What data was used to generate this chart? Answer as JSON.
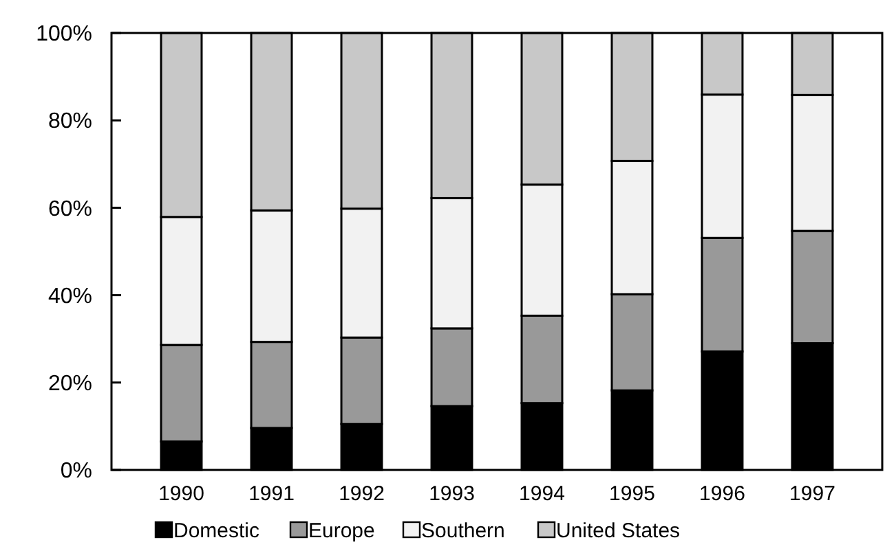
{
  "chart_data": {
    "type": "bar",
    "stacked": true,
    "categories": [
      "1990",
      "1991",
      "1992",
      "1993",
      "1994",
      "1995",
      "1996",
      "1997"
    ],
    "series": [
      {
        "name": "Domestic",
        "color": "#000000",
        "values": [
          6.5,
          9.6,
          10.5,
          14.6,
          15.3,
          18.2,
          27.1,
          29.0
        ]
      },
      {
        "name": "Europe",
        "color": "#999999",
        "values": [
          22.1,
          19.7,
          19.8,
          17.8,
          20.0,
          22.0,
          26.0,
          25.7
        ]
      },
      {
        "name": "Southern",
        "color": "#f2f2f2",
        "values": [
          29.3,
          30.1,
          29.5,
          29.8,
          30.0,
          30.5,
          32.8,
          31.1
        ]
      },
      {
        "name": "United States",
        "color": "#c8c8c8",
        "values": [
          42.1,
          40.6,
          40.2,
          37.8,
          34.7,
          29.3,
          14.1,
          14.2
        ]
      }
    ],
    "ylim": [
      0,
      100
    ],
    "yticks": [
      {
        "value": 0,
        "label": "0%"
      },
      {
        "value": 20,
        "label": "20%"
      },
      {
        "value": 40,
        "label": "40%"
      },
      {
        "value": 60,
        "label": "60%"
      },
      {
        "value": 80,
        "label": "80%"
      },
      {
        "value": 100,
        "label": "100%"
      }
    ],
    "grid": false,
    "legend": "bottom"
  }
}
